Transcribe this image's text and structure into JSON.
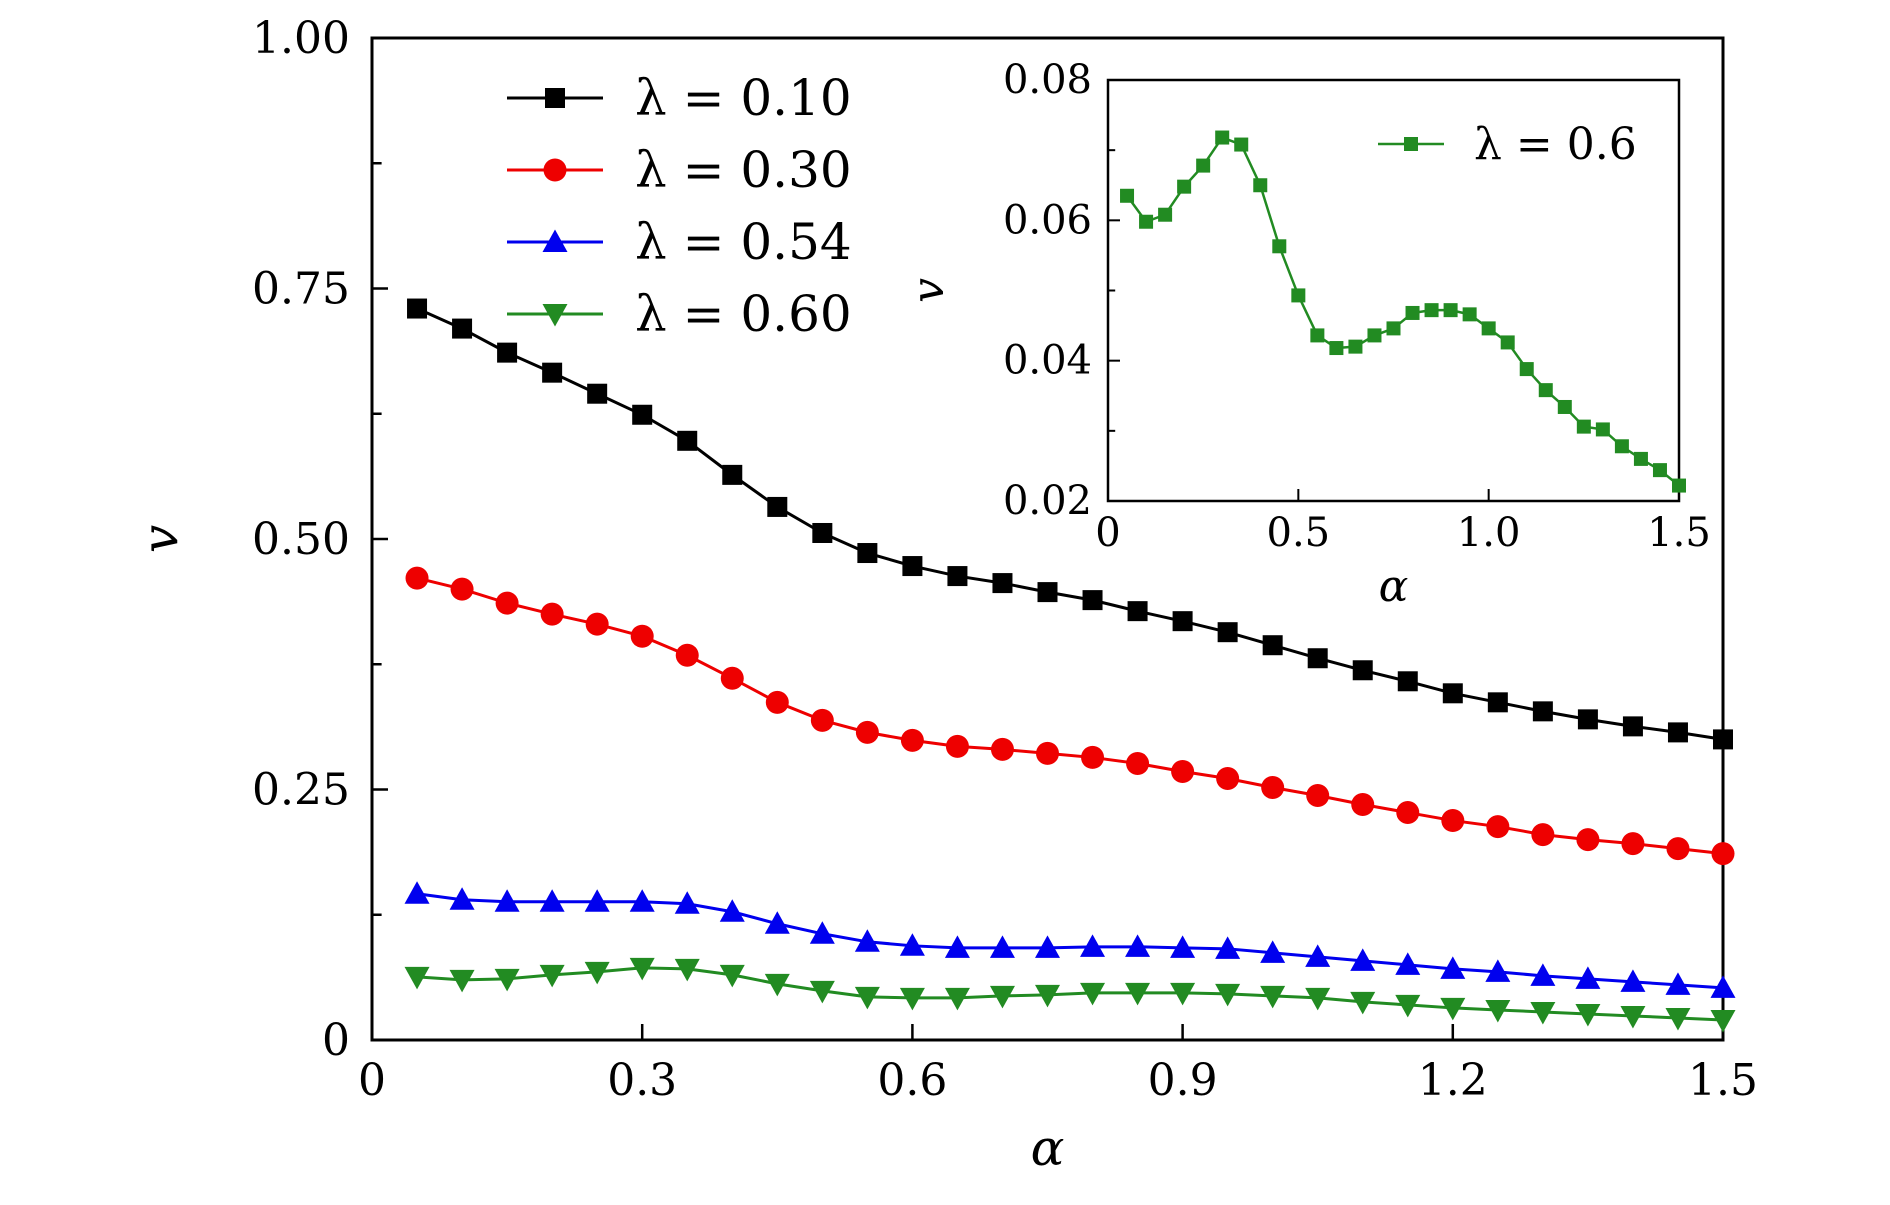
{
  "chart_data": [
    {
      "type": "line",
      "xlabel": "α",
      "ylabel": "v",
      "xlim": [
        0,
        1.5
      ],
      "ylim": [
        0,
        1.0
      ],
      "xticks": [
        "0",
        "0.3",
        "0.6",
        "0.9",
        "1.2",
        "1.5"
      ],
      "yticks": [
        "0",
        "0.25",
        "0.50",
        "0.75",
        "1.00"
      ],
      "grid": false,
      "legend_position": "top-left",
      "x": [
        0.05,
        0.1,
        0.15,
        0.2,
        0.25,
        0.3,
        0.35,
        0.4,
        0.45,
        0.5,
        0.55,
        0.6,
        0.65,
        0.7,
        0.75,
        0.8,
        0.85,
        0.9,
        0.95,
        1.0,
        1.05,
        1.1,
        1.15,
        1.2,
        1.25,
        1.3,
        1.35,
        1.4,
        1.45,
        1.5
      ],
      "series": [
        {
          "name": "λ = 0.10",
          "color": "#000000",
          "marker": "square",
          "values": [
            0.73,
            0.71,
            0.686,
            0.666,
            0.645,
            0.624,
            0.598,
            0.564,
            0.532,
            0.506,
            0.486,
            0.473,
            0.463,
            0.456,
            0.447,
            0.439,
            0.428,
            0.418,
            0.407,
            0.394,
            0.381,
            0.369,
            0.358,
            0.346,
            0.337,
            0.328,
            0.32,
            0.313,
            0.307,
            0.3
          ]
        },
        {
          "name": "λ = 0.30",
          "color": "#ee0000",
          "marker": "circle",
          "values": [
            0.461,
            0.45,
            0.436,
            0.425,
            0.415,
            0.403,
            0.384,
            0.361,
            0.337,
            0.319,
            0.307,
            0.299,
            0.293,
            0.29,
            0.286,
            0.282,
            0.276,
            0.268,
            0.261,
            0.252,
            0.244,
            0.235,
            0.227,
            0.219,
            0.213,
            0.205,
            0.2,
            0.196,
            0.191,
            0.186
          ]
        },
        {
          "name": "λ = 0.54",
          "color": "#0000ee",
          "marker": "triangle-up",
          "values": [
            0.146,
            0.14,
            0.138,
            0.138,
            0.138,
            0.138,
            0.136,
            0.128,
            0.116,
            0.106,
            0.098,
            0.094,
            0.092,
            0.092,
            0.092,
            0.093,
            0.093,
            0.092,
            0.091,
            0.087,
            0.083,
            0.079,
            0.075,
            0.071,
            0.068,
            0.064,
            0.061,
            0.058,
            0.055,
            0.052
          ]
        },
        {
          "name": "λ = 0.60",
          "color": "#228b22",
          "marker": "triangle-down",
          "values": [
            0.063,
            0.06,
            0.061,
            0.065,
            0.068,
            0.072,
            0.071,
            0.065,
            0.056,
            0.049,
            0.043,
            0.042,
            0.042,
            0.044,
            0.045,
            0.047,
            0.047,
            0.047,
            0.046,
            0.044,
            0.042,
            0.038,
            0.035,
            0.032,
            0.03,
            0.028,
            0.026,
            0.024,
            0.022,
            0.02
          ]
        }
      ]
    },
    {
      "type": "line",
      "xlabel": "α",
      "ylabel": "v",
      "xlim": [
        0,
        1.5
      ],
      "ylim": [
        0.02,
        0.08
      ],
      "xticks": [
        "0",
        "0.5",
        "1.0",
        "1.5"
      ],
      "yticks": [
        "0.02",
        "0.04",
        "0.06",
        "0.08"
      ],
      "grid": false,
      "legend_position": "top-right",
      "x": [
        0.05,
        0.1,
        0.15,
        0.2,
        0.25,
        0.3,
        0.35,
        0.4,
        0.45,
        0.5,
        0.55,
        0.6,
        0.65,
        0.7,
        0.75,
        0.8,
        0.85,
        0.9,
        0.95,
        1.0,
        1.05,
        1.1,
        1.15,
        1.2,
        1.25,
        1.3,
        1.35,
        1.4,
        1.45,
        1.5
      ],
      "series": [
        {
          "name": "λ = 0.6",
          "color": "#228b22",
          "marker": "square",
          "values": [
            0.0635,
            0.0598,
            0.0608,
            0.0648,
            0.0678,
            0.0718,
            0.0708,
            0.065,
            0.0563,
            0.0493,
            0.0436,
            0.0418,
            0.042,
            0.0436,
            0.0446,
            0.0468,
            0.0472,
            0.0472,
            0.0466,
            0.0446,
            0.0426,
            0.0388,
            0.0358,
            0.0334,
            0.0306,
            0.0302,
            0.0278,
            0.026,
            0.0244,
            0.0222
          ]
        }
      ]
    }
  ]
}
